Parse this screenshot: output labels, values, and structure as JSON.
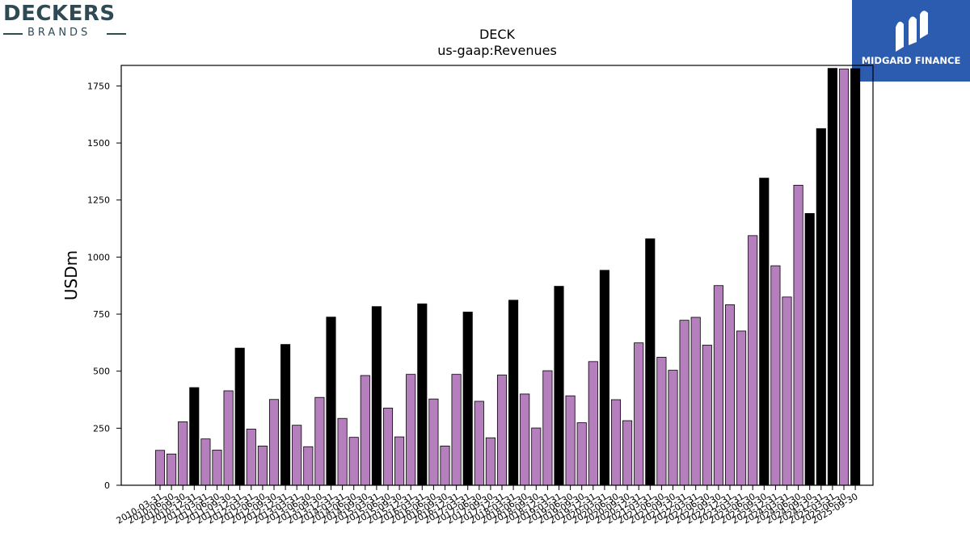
{
  "branding": {
    "left_logo_name": "DECKERS",
    "left_logo_sub": "BRANDS",
    "right_logo_name": "MIDGARD FINANCE",
    "right_logo_bg": "#2c5cb0"
  },
  "chart_data": {
    "type": "bar",
    "title": "DECK",
    "subtitle": "us-gaap:Revenues",
    "ylabel": "USDm",
    "xlabel": "",
    "ylim": [
      0,
      1840
    ],
    "yticks": [
      0,
      250,
      500,
      750,
      1000,
      1250,
      1500,
      1750
    ],
    "grid": false,
    "legend": "none",
    "colors": {
      "quarterly": "#b57fbd",
      "annual": "#000000",
      "edge": "#000000"
    },
    "categories": [
      "2010-03-31",
      "2010-06-30",
      "2010-09-30",
      "2010-12-31",
      "2011-03-31",
      "2011-06-30",
      "2011-09-30",
      "2011-12-31",
      "2012-03-31",
      "2012-06-30",
      "2012-09-30",
      "2012-12-31",
      "2013-03-31",
      "2013-06-30",
      "2013-09-30",
      "2013-12-31",
      "2014-03-31",
      "2014-06-30",
      "2014-09-30",
      "2015-03-31",
      "2015-06-30",
      "2015-09-30",
      "2015-12-31",
      "2016-03-31",
      "2016-06-30",
      "2016-09-30",
      "2016-12-31",
      "2017-03-31",
      "2017-06-30",
      "2017-09-30",
      "2017-12-31",
      "2018-03-31",
      "2018-06-30",
      "2018-09-30",
      "2018-12-31",
      "2019-03-31",
      "2019-06-30",
      "2019-09-30",
      "2019-12-31",
      "2020-03-31",
      "2020-06-30",
      "2020-09-30",
      "2020-12-31",
      "2021-03-31",
      "2021-06-30",
      "2021-09-30",
      "2021-12-31",
      "2022-03-31",
      "2022-06-30",
      "2022-09-30",
      "2022-12-31",
      "2023-03-31",
      "2023-06-30",
      "2023-09-30",
      "2023-12-31",
      "2024-03-31",
      "2024-06-30",
      "2024-09-30",
      "2024-12-31",
      "2025-03-31",
      "2025-06-30",
      "2025-09-30"
    ],
    "values": [
      153,
      137,
      278,
      428,
      203,
      154,
      414,
      601,
      246,
      172,
      376,
      617,
      263,
      169,
      385,
      737,
      293,
      210,
      481,
      783,
      338,
      212,
      486,
      795,
      378,
      172,
      486,
      759,
      368,
      208,
      483,
      811,
      400,
      251,
      502,
      872,
      392,
      274,
      542,
      942,
      375,
      283,
      624,
      1080,
      561,
      504,
      723,
      736,
      614,
      875,
      791,
      676,
      1094,
      1346,
      962,
      825,
      1315,
      1191,
      1563,
      1827,
      1824,
      1826
    ],
    "annual": [
      false,
      false,
      false,
      true,
      false,
      false,
      false,
      true,
      false,
      false,
      false,
      true,
      false,
      false,
      false,
      true,
      false,
      false,
      false,
      true,
      false,
      false,
      false,
      true,
      false,
      false,
      false,
      true,
      false,
      false,
      false,
      true,
      false,
      false,
      false,
      true,
      false,
      false,
      false,
      true,
      false,
      false,
      false,
      true,
      false,
      false,
      false,
      false,
      false,
      false,
      false,
      false,
      false,
      true,
      false,
      false,
      false,
      true,
      true,
      true,
      false,
      true
    ]
  }
}
